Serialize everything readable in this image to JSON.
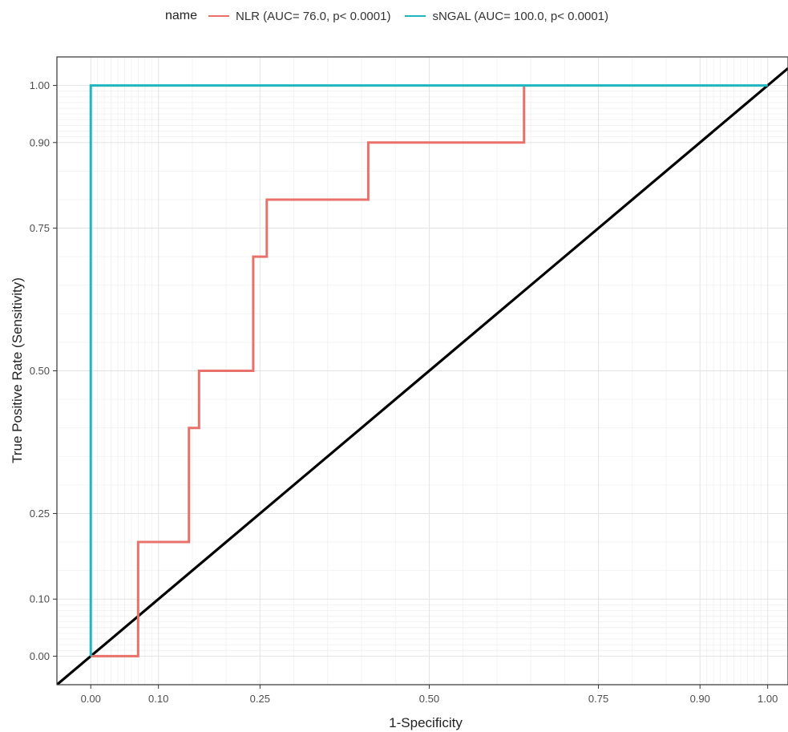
{
  "chart_data": {
    "type": "line",
    "title": "",
    "xlabel": "1-Specificity",
    "ylabel": "True Positive Rate (Sensitivity)",
    "xlim": [
      -0.05,
      1.03
    ],
    "ylim": [
      -0.05,
      1.05
    ],
    "x_ticks": [
      "0.00",
      "0.10",
      "0.25",
      "0.50",
      "0.75",
      "0.90",
      "1.00"
    ],
    "y_ticks": [
      "0.00",
      "0.10",
      "0.25",
      "0.50",
      "0.75",
      "0.90",
      "1.00"
    ],
    "grid": true,
    "legend": {
      "title": "name",
      "placement": "top",
      "entries": [
        {
          "label": "NLR (AUC= 76.0, p< 0.0001)",
          "color": "#E8726B"
        },
        {
          "label": "sNGAL (AUC= 100.0, p< 0.0001)",
          "color": "#1FB6C0"
        }
      ]
    },
    "series": [
      {
        "name": "NLR (AUC= 76.0, p< 0.0001)",
        "color": "#E8726B",
        "x": [
          0.0,
          0.07,
          0.07,
          0.145,
          0.145,
          0.16,
          0.16,
          0.24,
          0.24,
          0.26,
          0.26,
          0.41,
          0.41,
          0.64,
          0.64
        ],
        "y": [
          0.0,
          0.0,
          0.2,
          0.2,
          0.4,
          0.4,
          0.5,
          0.5,
          0.7,
          0.7,
          0.8,
          0.8,
          0.9,
          0.9,
          1.0
        ]
      },
      {
        "name": "sNGAL (AUC= 100.0, p< 0.0001)",
        "color": "#1FB6C0",
        "x": [
          0.0,
          0.0,
          1.0
        ],
        "y": [
          0.0,
          1.0,
          1.0
        ]
      },
      {
        "name": "",
        "color": "#000000",
        "x": [
          -0.05,
          1.03
        ],
        "y": [
          -0.05,
          1.03
        ]
      }
    ]
  }
}
